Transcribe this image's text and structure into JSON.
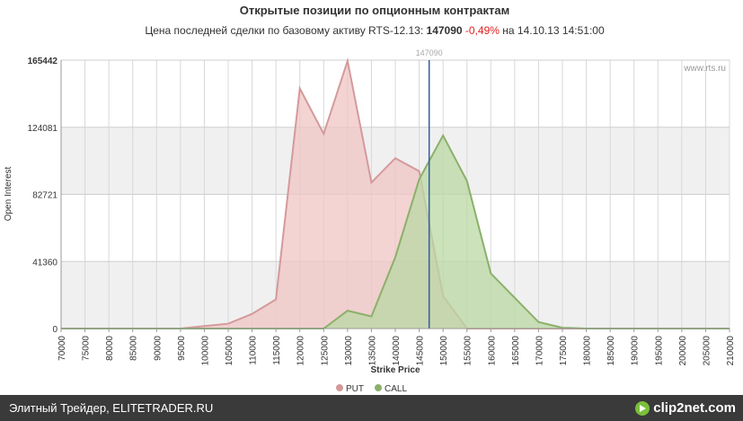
{
  "chart_data": {
    "type": "area",
    "title": "Открытые позиции по опционным контрактам",
    "subtitle": {
      "prefix": "Цена последней сделки по базовому активу RTS-12.13:",
      "price": "147090",
      "change": "-0,49%",
      "time": "на 14.10.13 14:51:00"
    },
    "watermark": "www.rts.ru",
    "xlabel": "Strike Price",
    "ylabel": "Open Interest",
    "xlim": [
      70000,
      210000
    ],
    "ylim": [
      0,
      165442
    ],
    "y_ticks": [
      "0",
      "41360",
      "82721",
      "124081",
      "165442"
    ],
    "x_tick_labels": [
      "70000",
      "75000",
      "80000",
      "85000",
      "90000",
      "95000",
      "100000",
      "105000",
      "110000",
      "115000",
      "120000",
      "125000",
      "130000",
      "135000",
      "140000",
      "145000",
      "150000",
      "155000",
      "160000",
      "165000",
      "170000",
      "175000",
      "180000",
      "185000",
      "190000",
      "195000",
      "200000",
      "205000",
      "210000"
    ],
    "x": [
      70000,
      75000,
      80000,
      85000,
      90000,
      95000,
      100000,
      105000,
      110000,
      115000,
      120000,
      125000,
      130000,
      135000,
      140000,
      145000,
      150000,
      155000,
      160000,
      165000,
      170000,
      175000,
      180000,
      185000,
      190000,
      195000,
      200000,
      205000,
      210000
    ],
    "series": [
      {
        "name": "PUT",
        "color": "#d49a9a",
        "fill": "#f0c4c4",
        "values": [
          0,
          0,
          0,
          0,
          0,
          0,
          1500,
          3000,
          9000,
          18000,
          148000,
          120000,
          165000,
          90000,
          105000,
          97000,
          20000,
          0,
          0,
          0,
          0,
          0,
          0,
          0,
          0,
          0,
          0,
          0,
          0
        ]
      },
      {
        "name": "CALL",
        "color": "#8bb06a",
        "fill": "#b9d8a3",
        "values": [
          0,
          0,
          0,
          0,
          0,
          0,
          0,
          0,
          0,
          0,
          0,
          0,
          11000,
          7500,
          44000,
          92000,
          119000,
          91000,
          34000,
          19000,
          4000,
          500,
          0,
          0,
          0,
          0,
          0,
          0,
          0
        ]
      }
    ],
    "marker": {
      "label": "147090",
      "value": 147090,
      "color": "#2e5e9e"
    },
    "grid": true,
    "legend_position": "bottom-center"
  },
  "footer": {
    "text": "Элитный Трейдер, ELITETRADER.RU",
    "brand": "clip2net.com",
    "brand_icon": "play-icon"
  }
}
